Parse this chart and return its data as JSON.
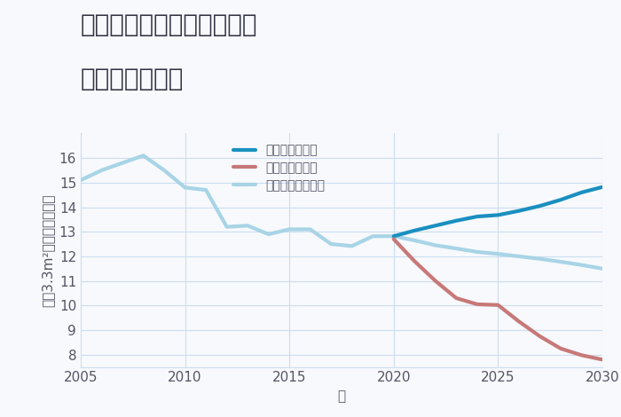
{
  "title_line1": "三重県松阪市御麻生薗町の",
  "title_line2": "土地の価格推移",
  "xlabel": "年",
  "ylabel": "坪（3.3m²）単価（万円）",
  "background_color": "#f7f9fc",
  "plot_bg_color": "#f7f9fc",
  "ylim": [
    7.5,
    17
  ],
  "xlim": [
    2005,
    2030
  ],
  "yticks": [
    8,
    9,
    10,
    11,
    12,
    13,
    14,
    15,
    16
  ],
  "xticks": [
    2005,
    2010,
    2015,
    2020,
    2025,
    2030
  ],
  "normal_scenario": {
    "label": "ノーマルシナリオ",
    "color": "#a8d4e6",
    "linewidth": 3.0,
    "x": [
      2005,
      2006,
      2007,
      2008,
      2009,
      2010,
      2011,
      2012,
      2013,
      2014,
      2015,
      2016,
      2017,
      2018,
      2019,
      2020,
      2021,
      2022,
      2023,
      2024,
      2025,
      2026,
      2027,
      2028,
      2029,
      2030
    ],
    "y": [
      15.1,
      15.5,
      15.8,
      16.1,
      15.5,
      14.8,
      14.7,
      13.2,
      13.25,
      12.9,
      13.1,
      13.1,
      12.5,
      12.42,
      12.82,
      12.82,
      12.65,
      12.45,
      12.32,
      12.18,
      12.1,
      12.0,
      11.9,
      11.78,
      11.65,
      11.5
    ]
  },
  "good_scenario": {
    "label": "グッドシナリオ",
    "color": "#1a8fc0",
    "linewidth": 3.0,
    "x": [
      2020,
      2021,
      2022,
      2023,
      2024,
      2025,
      2026,
      2027,
      2028,
      2029,
      2030
    ],
    "y": [
      12.82,
      13.05,
      13.25,
      13.45,
      13.62,
      13.68,
      13.85,
      14.05,
      14.3,
      14.6,
      14.82
    ]
  },
  "bad_scenario": {
    "label": "バッドシナリオ",
    "color": "#c87878",
    "linewidth": 3.0,
    "x": [
      2020,
      2021,
      2022,
      2023,
      2024,
      2025,
      2026,
      2027,
      2028,
      2029,
      2030
    ],
    "y": [
      12.7,
      11.8,
      11.0,
      10.3,
      10.05,
      10.02,
      9.35,
      8.75,
      8.25,
      7.98,
      7.8
    ]
  },
  "grid_color": "#ccddf0",
  "tick_color": "#555566",
  "title_color": "#333344",
  "title_fontsize": 20,
  "axis_fontsize": 11,
  "legend_fontsize": 10
}
